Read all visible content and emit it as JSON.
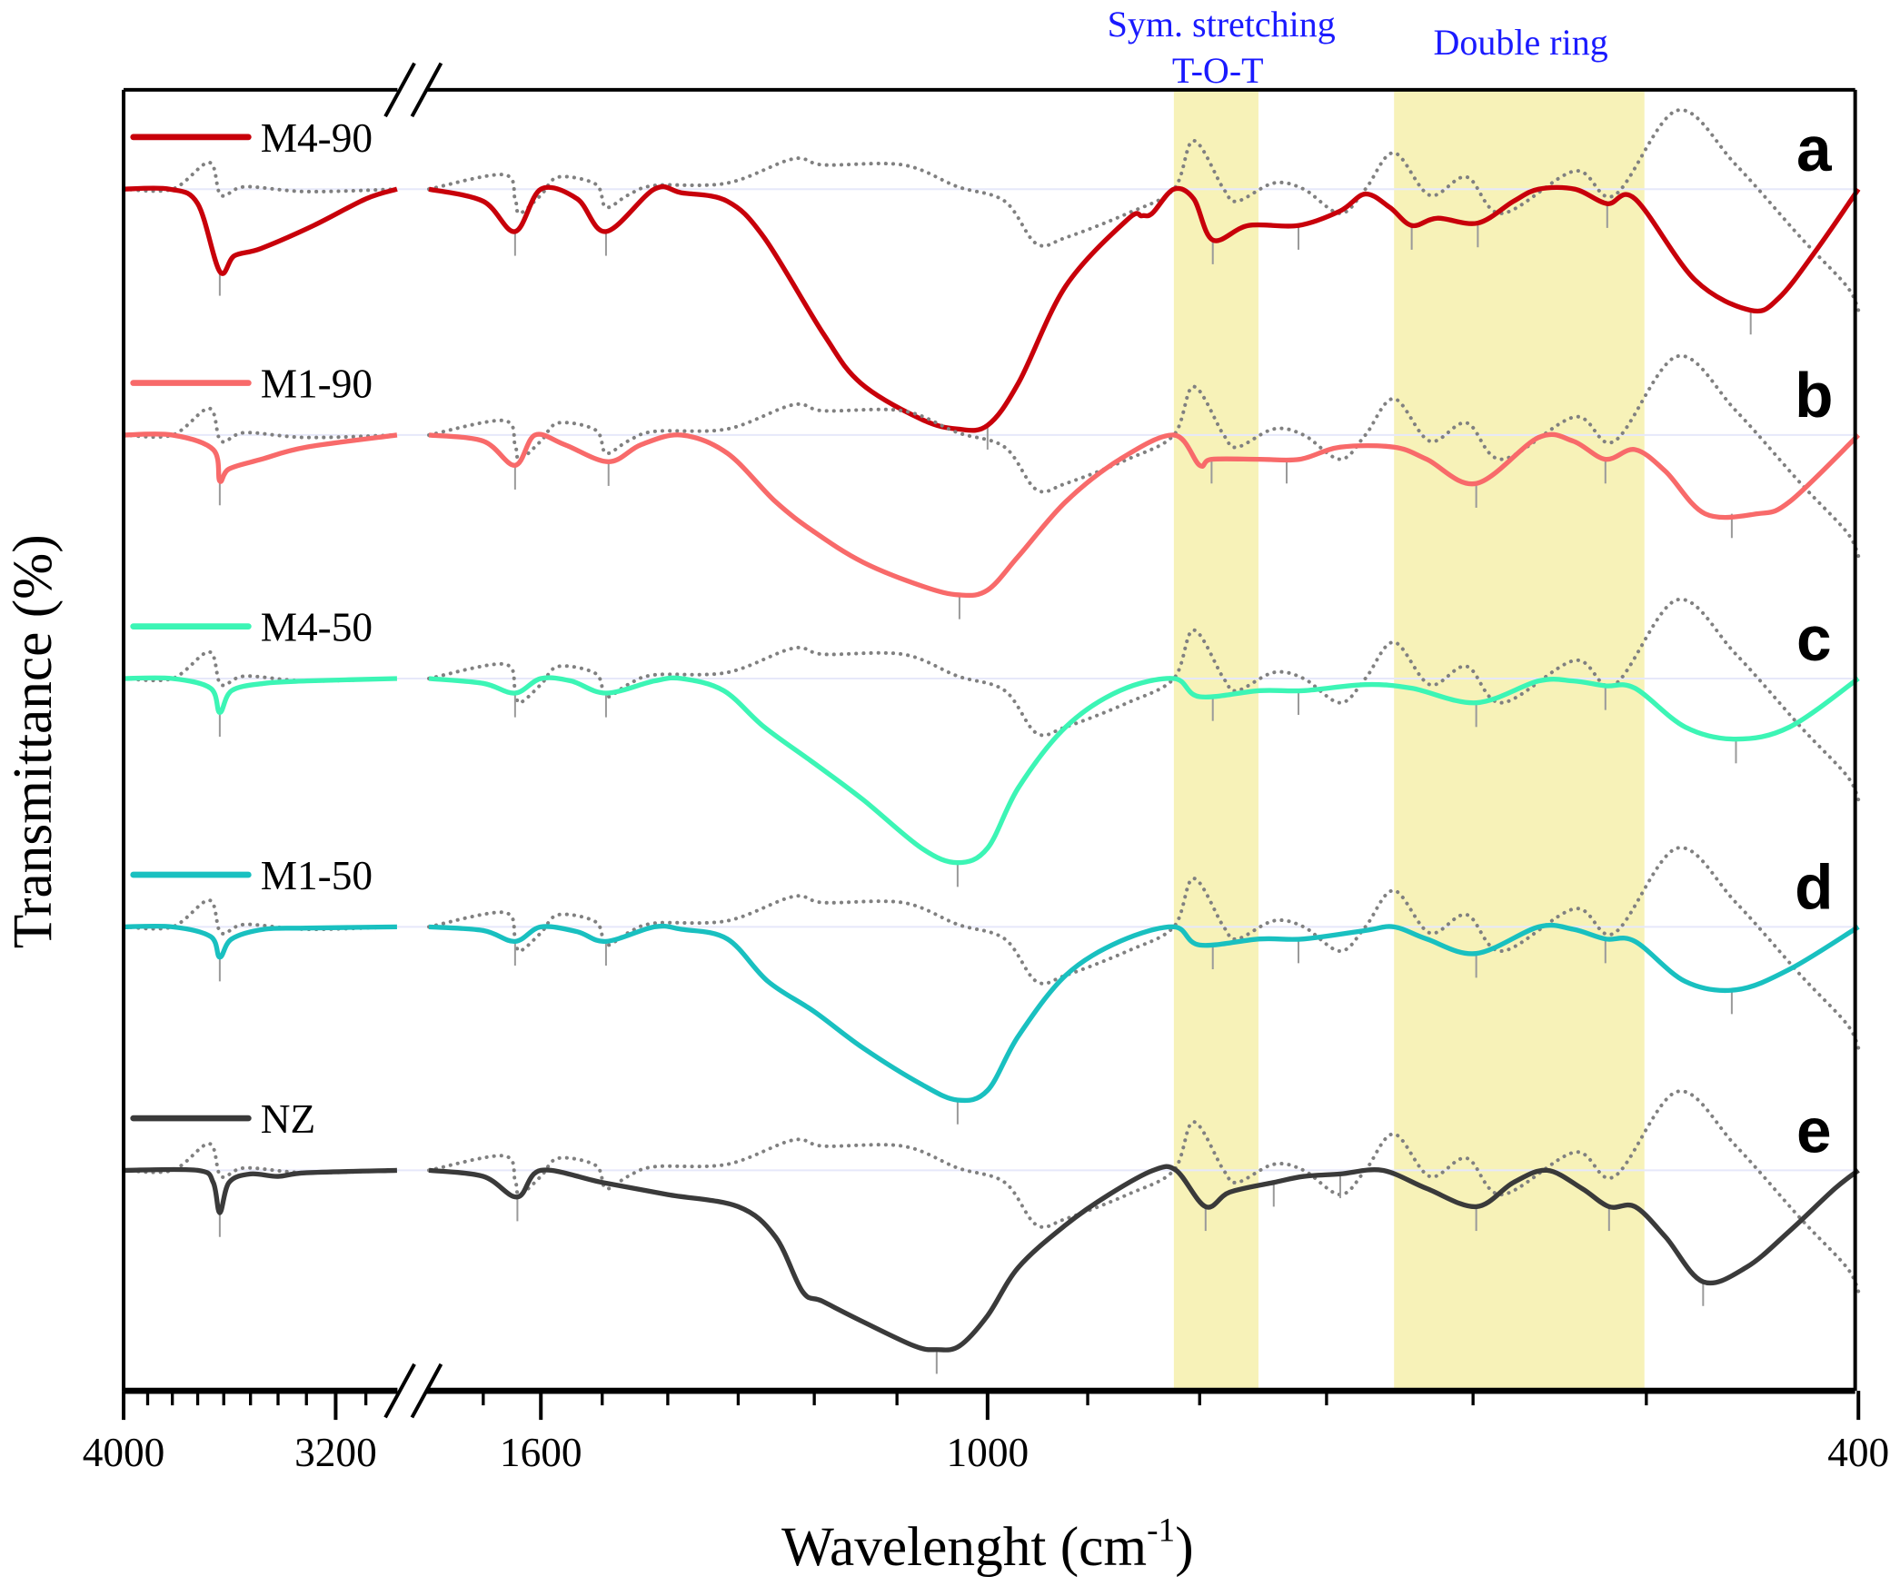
{
  "chart_data": {
    "type": "line",
    "xlabel": "Wavelenght (cm",
    "xlabel_sup": "-1",
    "xlabel_close": ")",
    "ylabel": "Transmittance (%)",
    "x_scale": "log",
    "x_axis_break": [
      3000,
      1800
    ],
    "xlim": [
      4000,
      400
    ],
    "x_direction": "descending",
    "x_tick_labels": [
      {
        "value": 4000,
        "label": "4000"
      },
      {
        "value": 3200,
        "label": "3200"
      },
      {
        "value": 1600,
        "label": "1600"
      },
      {
        "value": 1000,
        "label": "1000"
      },
      {
        "value": 400,
        "label": "400"
      }
    ],
    "x_minor_ticks": [
      3900,
      3800,
      3700,
      3600,
      3500,
      3400,
      3300,
      3100,
      1700,
      1500,
      1400,
      1300,
      1200,
      1100,
      900,
      800,
      700,
      600,
      500
    ],
    "y_ticks": "none",
    "stacked_offset": true,
    "grid": false,
    "legend_placement": "left, above each trace",
    "bands": [
      {
        "label_line1": "Sym. stretching",
        "label_line2": "T-O-T",
        "range": [
          822,
          752
        ],
        "color": "#f7f2b8"
      },
      {
        "label_line1": "Double ring",
        "label_line2": "",
        "range": [
          652,
          501
        ],
        "color": "#f7f2b8"
      }
    ],
    "annotation_color": "#1a1aff",
    "reference_trace": {
      "style": "dotted",
      "color": "#808080",
      "points": [
        [
          4000,
          0
        ],
        [
          3800,
          0
        ],
        [
          3655,
          22
        ],
        [
          3610,
          -5
        ],
        [
          3520,
          2
        ],
        [
          3300,
          -2
        ],
        [
          3000,
          0
        ],
        [
          1800,
          0
        ],
        [
          1664,
          12
        ],
        [
          1644,
          -8
        ],
        [
          1636,
          -20
        ],
        [
          1600,
          -5
        ],
        [
          1571,
          10
        ],
        [
          1510,
          4
        ],
        [
          1494,
          -15
        ],
        [
          1460,
          -5
        ],
        [
          1420,
          3
        ],
        [
          1315,
          5
        ],
        [
          1227,
          25
        ],
        [
          1188,
          20
        ],
        [
          1093,
          20
        ],
        [
          1032,
          2
        ],
        [
          982,
          -10
        ],
        [
          950,
          -45
        ],
        [
          921,
          -40
        ],
        [
          863,
          -20
        ],
        [
          822,
          0
        ],
        [
          805,
          40
        ],
        [
          780,
          0
        ],
        [
          769,
          -10
        ],
        [
          740,
          5
        ],
        [
          717,
          0
        ],
        [
          690,
          -20
        ],
        [
          672,
          0
        ],
        [
          652,
          30
        ],
        [
          628,
          -5
        ],
        [
          604,
          10
        ],
        [
          582,
          -20
        ],
        [
          539,
          15
        ],
        [
          517,
          -5
        ],
        [
          484,
          65
        ],
        [
          455,
          20
        ],
        [
          425,
          -40
        ],
        [
          405,
          -80
        ],
        [
          400,
          -100
        ]
      ]
    },
    "series": [
      {
        "name": "M4-90",
        "panel": "a",
        "color": "#c8000a",
        "points": [
          [
            4000,
            0
          ],
          [
            3811,
            0
          ],
          [
            3700,
            -12
          ],
          [
            3615,
            -68
          ],
          [
            3560,
            -55
          ],
          [
            3462,
            -49
          ],
          [
            3275,
            -30
          ],
          [
            3100,
            -8
          ],
          [
            3000,
            0
          ],
          [
            1800,
            0
          ],
          [
            1700,
            -10
          ],
          [
            1644,
            -35
          ],
          [
            1600,
            0
          ],
          [
            1540,
            -8
          ],
          [
            1494,
            -35
          ],
          [
            1420,
            0
          ],
          [
            1380,
            -3
          ],
          [
            1315,
            -10
          ],
          [
            1265,
            -40
          ],
          [
            1188,
            -120
          ],
          [
            1143,
            -160
          ],
          [
            1072,
            -190
          ],
          [
            1032,
            -198
          ],
          [
            1000,
            -195
          ],
          [
            968,
            -160
          ],
          [
            921,
            -80
          ],
          [
            863,
            -25
          ],
          [
            850,
            -22
          ],
          [
            841,
            -20
          ],
          [
            822,
            0
          ],
          [
            805,
            -8
          ],
          [
            789,
            -42
          ],
          [
            760,
            -30
          ],
          [
            721,
            -30
          ],
          [
            690,
            -18
          ],
          [
            672,
            -4
          ],
          [
            655,
            -15
          ],
          [
            640,
            -30
          ],
          [
            623,
            -24
          ],
          [
            597,
            -28
          ],
          [
            575,
            -10
          ],
          [
            560,
            0
          ],
          [
            539,
            0
          ],
          [
            521,
            -12
          ],
          [
            506,
            -8
          ],
          [
            475,
            -75
          ],
          [
            448,
            -100
          ],
          [
            435,
            -90
          ],
          [
            418,
            -50
          ],
          [
            400,
            0
          ]
        ],
        "peak_markers": [
          3615,
          1644,
          1494,
          1000,
          789,
          721,
          640,
          597,
          521,
          448
        ]
      },
      {
        "name": "M1-90",
        "panel": "b",
        "color": "#f86a6a",
        "points": [
          [
            4000,
            0
          ],
          [
            3800,
            0
          ],
          [
            3640,
            -12
          ],
          [
            3615,
            -38
          ],
          [
            3580,
            -28
          ],
          [
            3460,
            -20
          ],
          [
            3300,
            -10
          ],
          [
            3000,
            0
          ],
          [
            1800,
            0
          ],
          [
            1700,
            -5
          ],
          [
            1644,
            -25
          ],
          [
            1610,
            0
          ],
          [
            1560,
            -8
          ],
          [
            1490,
            -22
          ],
          [
            1440,
            -8
          ],
          [
            1380,
            0
          ],
          [
            1315,
            -15
          ],
          [
            1250,
            -55
          ],
          [
            1200,
            -80
          ],
          [
            1140,
            -105
          ],
          [
            1070,
            -125
          ],
          [
            1030,
            -132
          ],
          [
            1000,
            -128
          ],
          [
            968,
            -100
          ],
          [
            921,
            -55
          ],
          [
            870,
            -20
          ],
          [
            822,
            0
          ],
          [
            800,
            -25
          ],
          [
            790,
            -20
          ],
          [
            751,
            -20
          ],
          [
            720,
            -20
          ],
          [
            690,
            -10
          ],
          [
            652,
            -10
          ],
          [
            630,
            -20
          ],
          [
            598,
            -40
          ],
          [
            560,
            -2
          ],
          [
            540,
            -5
          ],
          [
            522,
            -20
          ],
          [
            506,
            -12
          ],
          [
            490,
            -30
          ],
          [
            470,
            -65
          ],
          [
            445,
            -65
          ],
          [
            430,
            -55
          ],
          [
            400,
            0
          ]
        ],
        "peak_markers": [
          3615,
          1644,
          1490,
          1030,
          790,
          730,
          598,
          522,
          457
        ]
      },
      {
        "name": "M4-50",
        "panel": "c",
        "color": "#3cf5b5",
        "points": [
          [
            4000,
            0
          ],
          [
            3800,
            0
          ],
          [
            3650,
            -8
          ],
          [
            3615,
            -28
          ],
          [
            3570,
            -10
          ],
          [
            3450,
            -4
          ],
          [
            3300,
            -2
          ],
          [
            3000,
            0
          ],
          [
            1800,
            0
          ],
          [
            1700,
            -4
          ],
          [
            1644,
            -12
          ],
          [
            1600,
            0
          ],
          [
            1550,
            -2
          ],
          [
            1494,
            -12
          ],
          [
            1420,
            -2
          ],
          [
            1380,
            0
          ],
          [
            1320,
            -10
          ],
          [
            1265,
            -40
          ],
          [
            1200,
            -70
          ],
          [
            1140,
            -100
          ],
          [
            1072,
            -140
          ],
          [
            1032,
            -152
          ],
          [
            1000,
            -140
          ],
          [
            968,
            -90
          ],
          [
            921,
            -40
          ],
          [
            870,
            -10
          ],
          [
            822,
            0
          ],
          [
            800,
            -15
          ],
          [
            751,
            -10
          ],
          [
            717,
            -10
          ],
          [
            672,
            -5
          ],
          [
            640,
            -8
          ],
          [
            598,
            -20
          ],
          [
            560,
            -2
          ],
          [
            540,
            -2
          ],
          [
            522,
            -6
          ],
          [
            506,
            -8
          ],
          [
            480,
            -40
          ],
          [
            455,
            -50
          ],
          [
            430,
            -40
          ],
          [
            400,
            0
          ]
        ],
        "peak_markers": [
          3615,
          1644,
          1494,
          1032,
          789,
          721,
          598,
          522,
          455
        ]
      },
      {
        "name": "M1-50",
        "panel": "d",
        "color": "#19c0c0",
        "points": [
          [
            4000,
            0
          ],
          [
            3800,
            0
          ],
          [
            3650,
            -8
          ],
          [
            3615,
            -25
          ],
          [
            3570,
            -10
          ],
          [
            3450,
            -2
          ],
          [
            3300,
            -1
          ],
          [
            3000,
            0
          ],
          [
            1800,
            0
          ],
          [
            1700,
            -3
          ],
          [
            1644,
            -12
          ],
          [
            1600,
            0
          ],
          [
            1540,
            -4
          ],
          [
            1494,
            -12
          ],
          [
            1420,
            0
          ],
          [
            1380,
            -2
          ],
          [
            1315,
            -10
          ],
          [
            1260,
            -45
          ],
          [
            1200,
            -70
          ],
          [
            1140,
            -100
          ],
          [
            1072,
            -130
          ],
          [
            1032,
            -143
          ],
          [
            1000,
            -135
          ],
          [
            968,
            -90
          ],
          [
            921,
            -40
          ],
          [
            870,
            -12
          ],
          [
            822,
            0
          ],
          [
            800,
            -15
          ],
          [
            751,
            -10
          ],
          [
            717,
            -10
          ],
          [
            672,
            -3
          ],
          [
            652,
            0
          ],
          [
            630,
            -10
          ],
          [
            598,
            -22
          ],
          [
            560,
            0
          ],
          [
            540,
            -2
          ],
          [
            522,
            -10
          ],
          [
            506,
            -12
          ],
          [
            480,
            -45
          ],
          [
            455,
            -52
          ],
          [
            430,
            -35
          ],
          [
            400,
            0
          ]
        ],
        "peak_markers": [
          3615,
          1644,
          1494,
          1032,
          789,
          721,
          598,
          522,
          457
        ]
      },
      {
        "name": "NZ",
        "panel": "e",
        "color": "#3a3a3a",
        "points": [
          [
            4000,
            0
          ],
          [
            3700,
            0
          ],
          [
            3640,
            -10
          ],
          [
            3615,
            -35
          ],
          [
            3580,
            -10
          ],
          [
            3500,
            -3
          ],
          [
            3400,
            -5
          ],
          [
            3300,
            -2
          ],
          [
            3000,
            0
          ],
          [
            1800,
            0
          ],
          [
            1700,
            -5
          ],
          [
            1640,
            -22
          ],
          [
            1600,
            0
          ],
          [
            1500,
            -10
          ],
          [
            1400,
            -20
          ],
          [
            1300,
            -30
          ],
          [
            1250,
            -55
          ],
          [
            1215,
            -100
          ],
          [
            1190,
            -108
          ],
          [
            1140,
            -125
          ],
          [
            1080,
            -145
          ],
          [
            1055,
            -148
          ],
          [
            1030,
            -145
          ],
          [
            1000,
            -120
          ],
          [
            968,
            -80
          ],
          [
            921,
            -45
          ],
          [
            880,
            -20
          ],
          [
            840,
            0
          ],
          [
            820,
            0
          ],
          [
            795,
            -30
          ],
          [
            775,
            -18
          ],
          [
            740,
            -10
          ],
          [
            717,
            -5
          ],
          [
            690,
            -3
          ],
          [
            660,
            0
          ],
          [
            630,
            -15
          ],
          [
            598,
            -30
          ],
          [
            575,
            -10
          ],
          [
            555,
            0
          ],
          [
            535,
            -15
          ],
          [
            520,
            -30
          ],
          [
            506,
            -30
          ],
          [
            490,
            -55
          ],
          [
            471,
            -92
          ],
          [
            450,
            -80
          ],
          [
            430,
            -50
          ],
          [
            410,
            -15
          ],
          [
            400,
            0
          ]
        ],
        "peak_markers": [
          3615,
          1640,
          1055,
          795,
          740,
          690,
          598,
          520,
          471
        ]
      }
    ]
  }
}
